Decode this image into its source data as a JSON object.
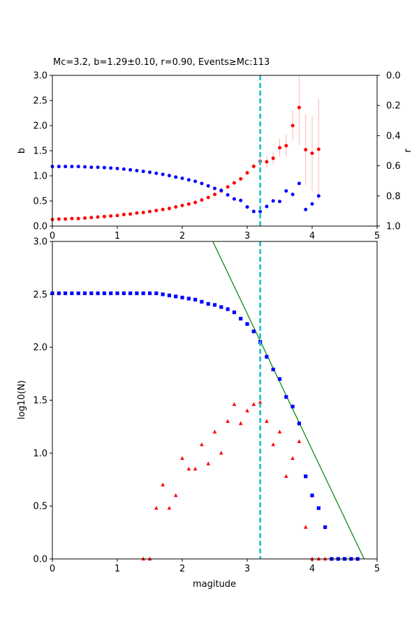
{
  "chart_data": [
    {
      "type": "scatter",
      "title": "Mc=3.2, b=1.29±0.10, r=0.90, Events≥Mc:113",
      "xlabel": "",
      "ylabel": "b",
      "ylabel_right": "r",
      "xlim": [
        0,
        5
      ],
      "ylim": [
        0,
        3
      ],
      "ylim_right": [
        1.0,
        0.0
      ],
      "x_ticks": [
        "0",
        "1",
        "2",
        "3",
        "4",
        "5"
      ],
      "y_ticks": [
        "0.0",
        "0.5",
        "1.0",
        "1.5",
        "2.0",
        "2.5",
        "3.0"
      ],
      "y_ticks_right": [
        "0.0",
        "0.2",
        "0.4",
        "0.6",
        "0.8",
        "1.0"
      ],
      "mc_line": 3.2,
      "series": [
        {
          "color": "#ff0000",
          "axis": "left",
          "marker": "circle",
          "x": [
            0.0,
            0.1,
            0.2,
            0.3,
            0.4,
            0.5,
            0.6,
            0.7,
            0.8,
            0.9,
            1.0,
            1.1,
            1.2,
            1.3,
            1.4,
            1.5,
            1.6,
            1.7,
            1.8,
            1.9,
            2.0,
            2.1,
            2.2,
            2.3,
            2.4,
            2.5,
            2.6,
            2.7,
            2.8,
            2.9,
            3.0,
            3.1,
            3.2,
            3.3,
            3.4,
            3.5,
            3.6,
            3.7,
            3.8,
            3.9,
            4.0,
            4.1
          ],
          "y": [
            0.13,
            0.14,
            0.14,
            0.15,
            0.15,
            0.16,
            0.17,
            0.18,
            0.19,
            0.2,
            0.21,
            0.23,
            0.24,
            0.26,
            0.27,
            0.29,
            0.31,
            0.33,
            0.35,
            0.38,
            0.41,
            0.44,
            0.47,
            0.52,
            0.57,
            0.63,
            0.7,
            0.78,
            0.86,
            0.94,
            1.06,
            1.19,
            1.29,
            1.28,
            1.35,
            1.56,
            1.6,
            2.0,
            2.36,
            1.52,
            1.45,
            1.53
          ],
          "err": [
            0.005,
            0.005,
            0.005,
            0.005,
            0.005,
            0.005,
            0.005,
            0.005,
            0.005,
            0.005,
            0.005,
            0.005,
            0.005,
            0.005,
            0.005,
            0.005,
            0.005,
            0.005,
            0.005,
            0.005,
            0.005,
            0.005,
            0.01,
            0.01,
            0.01,
            0.01,
            0.02,
            0.02,
            0.02,
            0.03,
            0.04,
            0.05,
            0.1,
            0.12,
            0.13,
            0.18,
            0.22,
            0.3,
            0.75,
            0.7,
            0.75,
            1.0
          ]
        },
        {
          "color": "#0000ff",
          "axis": "right",
          "marker": "circle",
          "x": [
            0.0,
            0.1,
            0.2,
            0.3,
            0.4,
            0.5,
            0.6,
            0.7,
            0.8,
            0.9,
            1.0,
            1.1,
            1.2,
            1.3,
            1.4,
            1.5,
            1.6,
            1.7,
            1.8,
            1.9,
            2.0,
            2.1,
            2.2,
            2.3,
            2.4,
            2.5,
            2.6,
            2.7,
            2.8,
            2.9,
            3.0,
            3.1,
            3.2,
            3.3,
            3.4,
            3.5,
            3.6,
            3.7,
            3.8,
            3.9,
            4.0,
            4.1
          ],
          "y": [
            0.605,
            0.605,
            0.605,
            0.605,
            0.605,
            0.607,
            0.61,
            0.61,
            0.612,
            0.615,
            0.618,
            0.622,
            0.627,
            0.632,
            0.637,
            0.643,
            0.65,
            0.657,
            0.665,
            0.675,
            0.683,
            0.693,
            0.703,
            0.717,
            0.733,
            0.75,
            0.763,
            0.793,
            0.82,
            0.83,
            0.873,
            0.903,
            0.903,
            0.87,
            0.833,
            0.837,
            0.767,
            0.79,
            0.717,
            0.89,
            0.853,
            0.8
          ]
        }
      ]
    },
    {
      "type": "scatter",
      "title": "",
      "xlabel": "magitude",
      "ylabel": "log10(N)",
      "xlim": [
        0,
        5
      ],
      "ylim": [
        0,
        3
      ],
      "x_ticks": [
        "0",
        "1",
        "2",
        "3",
        "4",
        "5"
      ],
      "y_ticks": [
        "0.0",
        "0.5",
        "1.0",
        "1.5",
        "2.0",
        "2.5",
        "3.0"
      ],
      "mc_line": 3.2,
      "fit_line": {
        "color": "#008000",
        "x": [
          2.47,
          4.8
        ],
        "y": [
          3.0,
          0.0
        ]
      },
      "series": [
        {
          "color": "#0000ff",
          "marker": "square",
          "x": [
            0.0,
            0.1,
            0.2,
            0.3,
            0.4,
            0.5,
            0.6,
            0.7,
            0.8,
            0.9,
            1.0,
            1.1,
            1.2,
            1.3,
            1.4,
            1.5,
            1.6,
            1.7,
            1.8,
            1.9,
            2.0,
            2.1,
            2.2,
            2.3,
            2.4,
            2.5,
            2.6,
            2.7,
            2.8,
            2.9,
            3.0,
            3.1,
            3.2,
            3.3,
            3.4,
            3.5,
            3.6,
            3.7,
            3.8,
            3.9,
            4.0,
            4.1,
            4.2,
            4.3,
            4.4,
            4.5,
            4.6,
            4.7
          ],
          "y": [
            2.51,
            2.51,
            2.51,
            2.51,
            2.51,
            2.51,
            2.51,
            2.51,
            2.51,
            2.51,
            2.51,
            2.51,
            2.51,
            2.51,
            2.51,
            2.51,
            2.51,
            2.5,
            2.49,
            2.48,
            2.47,
            2.46,
            2.45,
            2.43,
            2.41,
            2.4,
            2.38,
            2.36,
            2.33,
            2.27,
            2.22,
            2.15,
            2.05,
            1.91,
            1.79,
            1.7,
            1.53,
            1.44,
            1.28,
            0.78,
            0.6,
            0.48,
            0.3,
            0.0,
            0.0,
            0.0,
            0.0,
            0.0
          ]
        },
        {
          "color": "#ff0000",
          "marker": "triangle",
          "x": [
            1.4,
            1.5,
            1.6,
            1.7,
            1.8,
            1.9,
            2.0,
            2.1,
            2.2,
            2.3,
            2.4,
            2.5,
            2.6,
            2.7,
            2.8,
            2.9,
            3.0,
            3.1,
            3.2,
            3.3,
            3.4,
            3.5,
            3.6,
            3.7,
            3.8,
            3.9,
            4.0,
            4.1,
            4.2
          ],
          "y": [
            0.0,
            0.0,
            0.48,
            0.7,
            0.48,
            0.6,
            0.95,
            0.85,
            0.85,
            1.08,
            0.9,
            1.2,
            1.0,
            1.3,
            1.46,
            1.28,
            1.4,
            1.46,
            1.48,
            1.3,
            1.08,
            1.2,
            0.78,
            0.95,
            1.11,
            0.3,
            0.0,
            0.0,
            0.0
          ]
        }
      ]
    }
  ]
}
